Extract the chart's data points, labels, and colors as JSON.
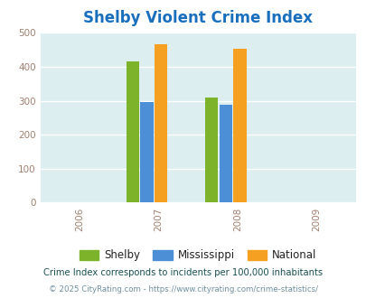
{
  "title": "Shelby Violent Crime Index",
  "years": [
    2006,
    2007,
    2008,
    2009
  ],
  "data": {
    "2007": {
      "Shelby": 415,
      "Mississippi": 295,
      "National": 466
    },
    "2008": {
      "Shelby": 310,
      "Mississippi": 288,
      "National": 453
    }
  },
  "colors": {
    "Shelby": "#7db32b",
    "Mississippi": "#4c8fd6",
    "National": "#f5a020"
  },
  "ylim": [
    0,
    500
  ],
  "yticks": [
    0,
    100,
    200,
    300,
    400,
    500
  ],
  "bar_width": 0.18,
  "chart_bg": "#ddeef0",
  "fig_bg": "#ffffff",
  "title_color": "#1a6fbd",
  "title_fontsize": 12,
  "legend_labels": [
    "Shelby",
    "Mississippi",
    "National"
  ],
  "footnote1": "Crime Index corresponds to incidents per 100,000 inhabitants",
  "footnote2": "© 2025 CityRating.com - https://www.cityrating.com/crime-statistics/",
  "footnote1_color": "#1a5050",
  "footnote2_color": "#7090a0"
}
